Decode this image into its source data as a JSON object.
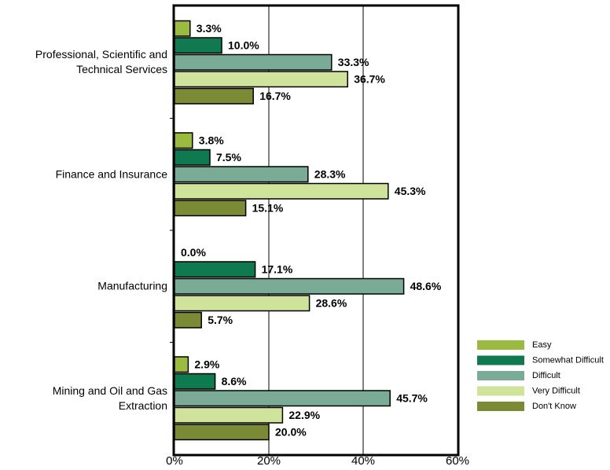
{
  "chart_data": {
    "type": "barh",
    "categories": [
      "Professional, Scientific and Technical Services",
      "Finance and Insurance",
      "Manufacturing",
      "Mining and Oil and Gas Extraction"
    ],
    "series": [
      {
        "name": "Easy",
        "color": "#9bbb40",
        "values": [
          3.3,
          3.8,
          0.0,
          2.9
        ],
        "value_labels": [
          "3.3%",
          "3.8%",
          "0.0%",
          "2.9%"
        ]
      },
      {
        "name": "Somewhat Difficult",
        "color": "#0f7a4f",
        "values": [
          10.0,
          7.5,
          17.1,
          8.6
        ],
        "value_labels": [
          "10.0%",
          "7.5%",
          "17.1%",
          "8.6%"
        ]
      },
      {
        "name": "Difficult",
        "color": "#7aab96",
        "values": [
          33.3,
          28.3,
          48.6,
          45.7
        ],
        "value_labels": [
          "33.3%",
          "28.3%",
          "48.6%",
          "45.7%"
        ]
      },
      {
        "name": "Very Difficult",
        "color": "#cfe49a",
        "values": [
          36.7,
          45.3,
          28.6,
          22.9
        ],
        "value_labels": [
          "36.7%",
          "45.3%",
          "28.6%",
          "22.9%"
        ]
      },
      {
        "name": "Don't Know",
        "color": "#7b8a35",
        "values": [
          16.7,
          15.1,
          5.7,
          20.0
        ],
        "value_labels": [
          "16.7%",
          "15.1%",
          "5.7%",
          "20.0%"
        ]
      }
    ],
    "xlim": [
      0,
      60
    ],
    "xticks": [
      {
        "value": 0,
        "label": "0%"
      },
      {
        "value": 20,
        "label": "20%"
      },
      {
        "value": 40,
        "label": "40%"
      },
      {
        "value": 60,
        "label": "60%"
      }
    ],
    "grid": true,
    "legend": "right"
  }
}
